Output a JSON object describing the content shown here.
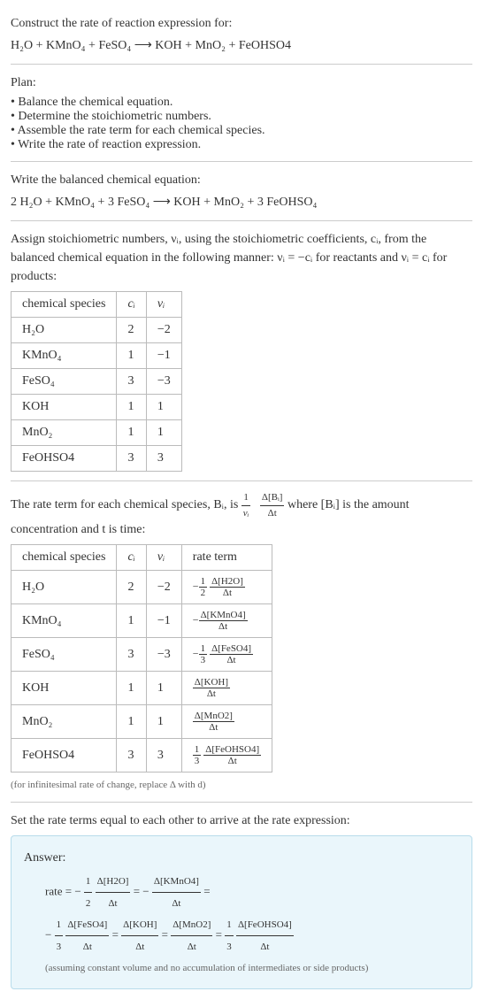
{
  "header": {
    "construct_line": "Construct the rate of reaction expression for:",
    "reaction_unbalanced": "H₂O + KMnO₄ + FeSO₄  ⟶  KOH + MnO₂ + FeOHSO4"
  },
  "plan": {
    "title": "Plan:",
    "items": [
      "Balance the chemical equation.",
      "Determine the stoichiometric numbers.",
      "Assemble the rate term for each chemical species.",
      "Write the rate of reaction expression."
    ]
  },
  "balanced": {
    "intro": "Write the balanced chemical equation:",
    "equation": "2 H₂O + KMnO₄ + 3 FeSO₄  ⟶  KOH + MnO₂ + 3 FeOHSO₄"
  },
  "assign": {
    "text": "Assign stoichiometric numbers, νᵢ, using the stoichiometric coefficients, cᵢ, from the balanced chemical equation in the following manner: νᵢ = −cᵢ for reactants and νᵢ = cᵢ for products:"
  },
  "table1": {
    "headers": [
      "chemical species",
      "cᵢ",
      "νᵢ"
    ],
    "rows": [
      [
        "H₂O",
        "2",
        "−2"
      ],
      [
        "KMnO₄",
        "1",
        "−1"
      ],
      [
        "FeSO₄",
        "3",
        "−3"
      ],
      [
        "KOH",
        "1",
        "1"
      ],
      [
        "MnO₂",
        "1",
        "1"
      ],
      [
        "FeOHSO4",
        "3",
        "3"
      ]
    ]
  },
  "rate_intro": {
    "text_a": "The rate term for each chemical species, Bᵢ, is ",
    "frac_outer_num": "1",
    "frac_outer_den": "νᵢ",
    "frac_inner_num": "Δ[Bᵢ]",
    "frac_inner_den": "Δt",
    "text_b": " where [Bᵢ] is the amount concentration and t is time:"
  },
  "table2": {
    "headers": [
      "chemical species",
      "cᵢ",
      "νᵢ",
      "rate term"
    ],
    "rows": [
      {
        "sp": "H₂O",
        "c": "2",
        "v": "−2",
        "pre": "−",
        "sn": "1",
        "sd": "2",
        "dn": "Δ[H2O]",
        "dd": "Δt"
      },
      {
        "sp": "KMnO₄",
        "c": "1",
        "v": "−1",
        "pre": "−",
        "sn": "",
        "sd": "",
        "dn": "Δ[KMnO4]",
        "dd": "Δt"
      },
      {
        "sp": "FeSO₄",
        "c": "3",
        "v": "−3",
        "pre": "−",
        "sn": "1",
        "sd": "3",
        "dn": "Δ[FeSO4]",
        "dd": "Δt"
      },
      {
        "sp": "KOH",
        "c": "1",
        "v": "1",
        "pre": "",
        "sn": "",
        "sd": "",
        "dn": "Δ[KOH]",
        "dd": "Δt"
      },
      {
        "sp": "MnO₂",
        "c": "1",
        "v": "1",
        "pre": "",
        "sn": "",
        "sd": "",
        "dn": "Δ[MnO2]",
        "dd": "Δt"
      },
      {
        "sp": "FeOHSO4",
        "c": "3",
        "v": "3",
        "pre": "",
        "sn": "1",
        "sd": "3",
        "dn": "Δ[FeOHSO4]",
        "dd": "Δt"
      }
    ],
    "footnote": "(for infinitesimal rate of change, replace Δ with d)"
  },
  "set_equal": "Set the rate terms equal to each other to arrive at the rate expression:",
  "answer": {
    "label": "Answer:",
    "line1_prefix": "rate = −",
    "t1": {
      "sn": "1",
      "sd": "2",
      "dn": "Δ[H2O]",
      "dd": "Δt"
    },
    "eq1": " = −",
    "t2": {
      "sn": "",
      "sd": "",
      "dn": "Δ[KMnO4]",
      "dd": "Δt"
    },
    "eq1b": " = ",
    "line2_prefix": "−",
    "t3": {
      "sn": "1",
      "sd": "3",
      "dn": "Δ[FeSO4]",
      "dd": "Δt"
    },
    "eq2": " = ",
    "t4": {
      "sn": "",
      "sd": "",
      "dn": "Δ[KOH]",
      "dd": "Δt"
    },
    "eq3": " = ",
    "t5": {
      "sn": "",
      "sd": "",
      "dn": "Δ[MnO2]",
      "dd": "Δt"
    },
    "eq4": " = ",
    "t6": {
      "sn": "1",
      "sd": "3",
      "dn": "Δ[FeOHSO4]",
      "dd": "Δt"
    },
    "assumption": "(assuming constant volume and no accumulation of intermediates or side products)"
  },
  "colors": {
    "answer_bg": "#eaf6fb",
    "answer_border": "#b8dceb",
    "rule": "#cccccc",
    "text": "#333333"
  }
}
